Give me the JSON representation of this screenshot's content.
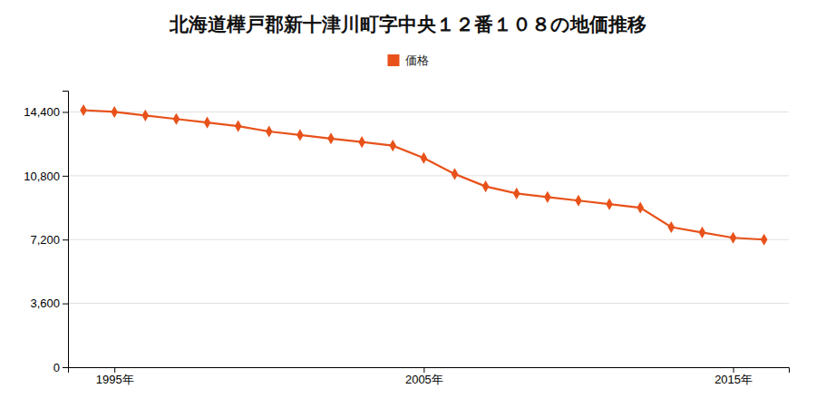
{
  "chart_data": {
    "type": "line",
    "title": "北海道樺戸郡新十津川町字中央１２番１０８の地価推移",
    "x": [
      1994,
      1995,
      1996,
      1997,
      1998,
      1999,
      2000,
      2001,
      2002,
      2003,
      2004,
      2005,
      2006,
      2007,
      2008,
      2009,
      2010,
      2011,
      2012,
      2013,
      2014,
      2015,
      2016
    ],
    "series": [
      {
        "name": "価格",
        "color": "#E8521A",
        "marker": "diamond",
        "values": [
          14500,
          14400,
          14200,
          14000,
          13800,
          13600,
          13300,
          13100,
          12900,
          12700,
          12500,
          11800,
          10900,
          10200,
          9800,
          9600,
          9400,
          9200,
          9000,
          7900,
          7600,
          7300,
          7200
        ]
      }
    ],
    "xlim": [
      1993.5,
      2016.8
    ],
    "xticks": [
      {
        "value": 1995,
        "label": "1995年"
      },
      {
        "value": 2005,
        "label": "2005年"
      },
      {
        "value": 2015,
        "label": "2015年"
      }
    ],
    "ylim": [
      0,
      15600
    ],
    "yticks": [
      0,
      {
        "value": 3600,
        "label": "3,600"
      },
      {
        "value": 7200,
        "label": "7,200"
      },
      {
        "value": 10800,
        "label": "10,800"
      },
      {
        "value": 14400,
        "label": "14,400"
      }
    ],
    "grid": true,
    "legend": "top"
  }
}
